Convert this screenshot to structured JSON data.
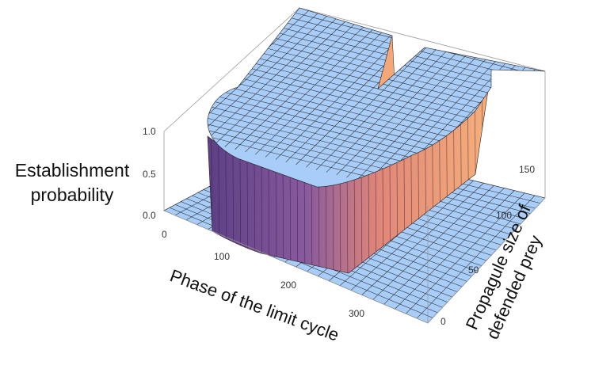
{
  "chart_data": {
    "type": "surface3d",
    "xlabel": "Phase of the limit cycle",
    "ylabel": "Propagule size of defended prey",
    "zlabel_lines": [
      "Establishment",
      "probability"
    ],
    "x_range": [
      0,
      380
    ],
    "y_range": [
      0,
      180
    ],
    "z_range": [
      0,
      1
    ],
    "x_ticks": [
      "0",
      "100",
      "200",
      "300"
    ],
    "y_ticks": [
      "0",
      "50",
      "100",
      "150"
    ],
    "z_ticks": [
      "0.0",
      "0.5",
      "1.0"
    ],
    "z_levels": [
      0,
      1
    ],
    "establishment_region": {
      "description_values": "probability 1.0 where phase in [30, 230] for propagule size >= about 70, plus rounded corner region; otherwise 0.0",
      "high_value": 1.0,
      "low_value": 0.0
    },
    "colors": {
      "surface": "#a8cdf9",
      "wall_dark": "#6a4a8e",
      "wall_light": "#f3a277",
      "mesh": "#222222"
    }
  }
}
